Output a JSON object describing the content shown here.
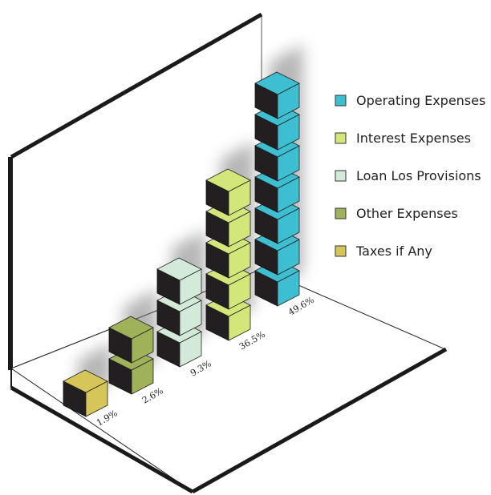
{
  "chart_data": {
    "type": "bar",
    "title": "",
    "xlabel": "",
    "ylabel": "",
    "categories": [
      "Taxes if Any",
      "Other Expenses",
      "Loan Los Provisions",
      "Interest Expenses",
      "Operating Expenses"
    ],
    "values": [
      1.9,
      2.6,
      9.3,
      36.5,
      49.6
    ],
    "value_labels": [
      "1.9%",
      "2.6%",
      "9.3%",
      "36.5%",
      "49.6%"
    ],
    "unit": "%",
    "stack_cubes": [
      1,
      2,
      3,
      5,
      7
    ],
    "colors": [
      "#d6c65a",
      "#9fb25a",
      "#d4ead8",
      "#d3e67a",
      "#3dbfd1"
    ],
    "legend": {
      "placement": "right",
      "entries": [
        {
          "label": "Operating Expenses",
          "color": "#3dbfd1"
        },
        {
          "label": "Interest Expenses",
          "color": "#d3e67a"
        },
        {
          "label": "Loan Los Provisions",
          "color": "#d4ead8"
        },
        {
          "label": "Other Expenses",
          "color": "#9fb25a"
        },
        {
          "label": "Taxes if Any",
          "color": "#d6c65a"
        }
      ]
    },
    "grid": false
  }
}
